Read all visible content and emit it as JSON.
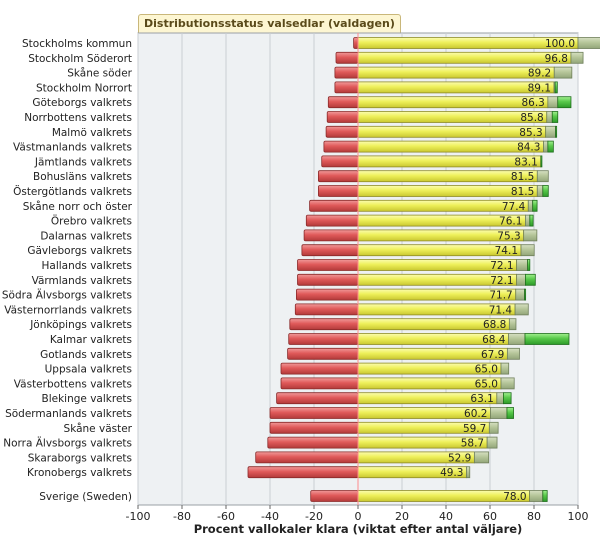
{
  "chart_data": {
    "type": "bar",
    "title": "Distributionsstatus valsedlar (valdagen)",
    "xlabel": "Procent vallokaler klara (viktat efter antal väljare)",
    "xlim": [
      -100,
      100
    ],
    "xticks": [
      -100,
      -80,
      -60,
      -40,
      -20,
      0,
      20,
      40,
      60,
      80,
      100
    ],
    "grid": true,
    "colors": {
      "negative": "#e05a5a",
      "positive_main": "#eef05a",
      "positive_gray": "#b6c69a",
      "positive_green": "#58c84a",
      "reference_line": "#ff8c8c"
    },
    "categories": [
      "Stockholms kommun",
      "Stockholm Söderort",
      "Skåne söder",
      "Stockholm Norrort",
      "Göteborgs valkrets",
      "Norrbottens valkrets",
      "Malmö valkrets",
      "Västmanlands valkrets",
      "Jämtlands valkrets",
      "Bohusläns valkrets",
      "Östergötlands valkrets",
      "Skåne norr och öster",
      "Örebro valkrets",
      "Dalarnas valkrets",
      "Gävleborgs valkrets",
      "Hallands valkrets",
      "Värmlands valkrets",
      "Södra Älvsborgs valkrets",
      "Västernorrlands valkrets",
      "Jönköpings valkrets",
      "Kalmar valkrets",
      "Gotlands valkrets",
      "Uppsala valkrets",
      "Västerbottens valkrets",
      "Blekinge valkrets",
      "Södermanlands valkrets",
      "Skåne väster",
      "Norra Älvsborgs valkrets",
      "Skaraborgs valkrets",
      "Kronobergs valkrets"
    ],
    "values": [
      100.0,
      96.8,
      89.2,
      89.1,
      86.3,
      85.8,
      85.3,
      84.3,
      83.1,
      81.5,
      81.5,
      77.4,
      76.1,
      75.3,
      74.1,
      72.1,
      72.1,
      71.7,
      71.4,
      68.8,
      68.4,
      67.9,
      65.0,
      65.0,
      63.1,
      60.2,
      59.7,
      58.7,
      52.9,
      49.3
    ],
    "value_labels": [
      "100.0",
      "96.8",
      "89.2",
      "89.1",
      "86.3",
      "85.8",
      "85.3",
      "84.3",
      "83.1",
      "81.5",
      "81.5",
      "77.4",
      "76.1",
      "75.3",
      "74.1",
      "72.1",
      "72.1",
      "71.7",
      "71.4",
      "68.8",
      "68.4",
      "67.9",
      "65.0",
      "65.0",
      "63.1",
      "60.2",
      "59.7",
      "58.7",
      "52.9",
      "49.3"
    ],
    "negative_values": [
      -2,
      -10,
      -10.5,
      -10.5,
      -13.5,
      -14,
      -14.5,
      -15.5,
      -16.5,
      -18,
      -18,
      -22,
      -23.5,
      -24.5,
      -25.5,
      -27.5,
      -27.5,
      -28,
      -28.5,
      -31,
      -31.5,
      -32,
      -35,
      -35,
      -37,
      -40,
      -40,
      -41,
      -46.5,
      -50
    ],
    "gray_segment": [
      13,
      5.5,
      8,
      0.5,
      4.5,
      2.5,
      4.5,
      2,
      0,
      5,
      2.5,
      2,
      2,
      6,
      6,
      5,
      4,
      4,
      6,
      3,
      7.5,
      5.5,
      3.5,
      6,
      3,
      7.5,
      4,
      4.5,
      6.5,
      1.5
    ],
    "green_segment": [
      0,
      0,
      0,
      1,
      6,
      2.5,
      0.5,
      2.5,
      0.5,
      0,
      2.5,
      2,
      1.5,
      0,
      0,
      1,
      4.5,
      0.5,
      0,
      0,
      20,
      0,
      0,
      0,
      3.5,
      3,
      0,
      0,
      0,
      0
    ],
    "summary": {
      "category": "Sverige (Sweden)",
      "value": 78.0,
      "value_label": "78.0",
      "negative_value": -21.5,
      "gray_segment": 6,
      "green_segment": 2
    }
  }
}
